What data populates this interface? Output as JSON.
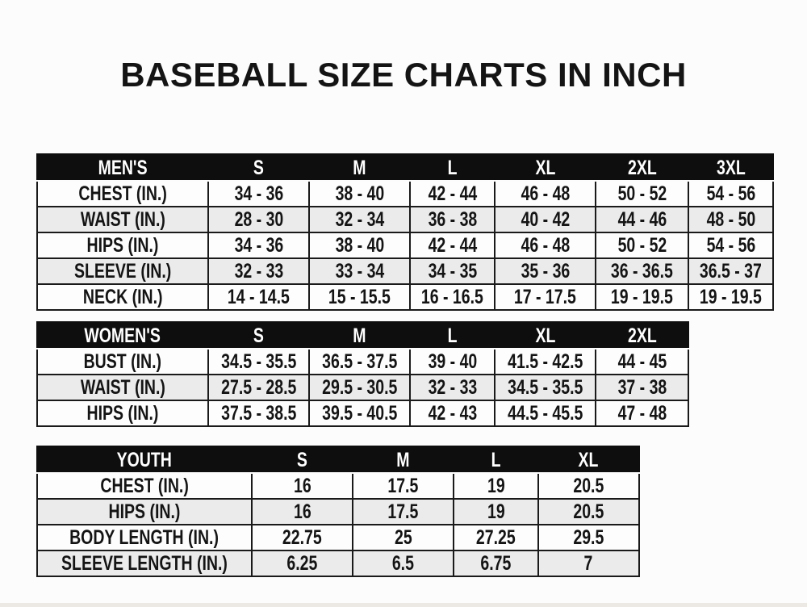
{
  "title": "BASEBALL SIZE CHARTS IN INCH",
  "tables": [
    {
      "name": "mens",
      "columns": [
        "MEN'S",
        "S",
        "M",
        "L",
        "XL",
        "2XL",
        "3XL"
      ],
      "rows": [
        {
          "label": "CHEST (IN.)",
          "values": [
            "34 - 36",
            "38 - 40",
            "42 - 44",
            "46 - 48",
            "50 - 52",
            "54 - 56"
          ]
        },
        {
          "label": "WAIST (IN.)",
          "values": [
            "28 - 30",
            "32 - 34",
            "36 - 38",
            "40 - 42",
            "44 - 46",
            "48 - 50"
          ]
        },
        {
          "label": "HIPS (IN.)",
          "values": [
            "34 - 36",
            "38 - 40",
            "42 - 44",
            "46 - 48",
            "50 - 52",
            "54 - 56"
          ]
        },
        {
          "label": "SLEEVE (IN.)",
          "values": [
            "32 - 33",
            "33 - 34",
            "34 - 35",
            "35 - 36",
            "36 - 36.5",
            "36.5 - 37"
          ]
        },
        {
          "label": "NECK (IN.)",
          "values": [
            "14 - 14.5",
            "15 - 15.5",
            "16 - 16.5",
            "17 - 17.5",
            "19 - 19.5",
            "19 - 19.5"
          ]
        }
      ]
    },
    {
      "name": "womens",
      "columns": [
        "WOMEN'S",
        "S",
        "M",
        "L",
        "XL",
        "2XL"
      ],
      "rows": [
        {
          "label": "BUST (IN.)",
          "values": [
            "34.5 - 35.5",
            "36.5 - 37.5",
            "39 - 40",
            "41.5 - 42.5",
            "44 - 45"
          ]
        },
        {
          "label": "WAIST (IN.)",
          "values": [
            "27.5 - 28.5",
            "29.5 - 30.5",
            "32 - 33",
            "34.5 - 35.5",
            "37 - 38"
          ]
        },
        {
          "label": "HIPS (IN.)",
          "values": [
            "37.5 - 38.5",
            "39.5 - 40.5",
            "42 - 43",
            "44.5 - 45.5",
            "47 - 48"
          ]
        }
      ]
    },
    {
      "name": "youth",
      "columns": [
        "YOUTH",
        "S",
        "M",
        "L",
        "XL"
      ],
      "rows": [
        {
          "label": "CHEST (IN.)",
          "values": [
            "16",
            "17.5",
            "19",
            "20.5"
          ]
        },
        {
          "label": "HIPS (IN.)",
          "values": [
            "16",
            "17.5",
            "19",
            "20.5"
          ]
        },
        {
          "label": "BODY LENGTH (IN.)",
          "values": [
            "22.75",
            "25",
            "27.25",
            "29.5"
          ]
        },
        {
          "label": "SLEEVE LENGTH (IN.)",
          "values": [
            "6.25",
            "6.5",
            "6.75",
            "7"
          ]
        }
      ]
    }
  ],
  "colors": {
    "page_bg": "#fcfcfc",
    "header_bg": "#0e0e0e",
    "header_text": "#ffffff",
    "row_bg": "#fdfdfd",
    "row_alt_bg": "#ebebeb",
    "border": "#1a1a1a",
    "text": "#141414"
  }
}
